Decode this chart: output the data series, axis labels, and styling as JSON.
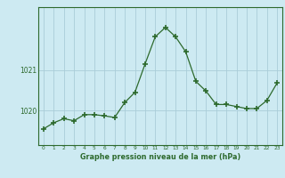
{
  "hours": [
    0,
    1,
    2,
    3,
    4,
    5,
    6,
    7,
    8,
    9,
    10,
    11,
    12,
    13,
    14,
    15,
    16,
    17,
    18,
    19,
    20,
    21,
    22,
    23
  ],
  "pressure": [
    1019.55,
    1019.7,
    1019.8,
    1019.75,
    1019.9,
    1019.9,
    1019.87,
    1019.83,
    1020.2,
    1020.45,
    1021.15,
    1021.82,
    1022.05,
    1021.82,
    1021.45,
    1020.72,
    1020.48,
    1020.15,
    1020.15,
    1020.1,
    1020.05,
    1020.05,
    1020.25,
    1020.68
  ],
  "line_color": "#2d6a2d",
  "marker_color": "#2d6a2d",
  "bg_color": "#cdeaf2",
  "grid_color": "#aacdd8",
  "axis_color": "#2d6a2d",
  "xlabel": "Graphe pression niveau de la mer (hPa)",
  "ylabel_ticks": [
    1020,
    1021
  ],
  "ylim": [
    1019.15,
    1022.55
  ],
  "xlim": [
    -0.5,
    23.5
  ]
}
